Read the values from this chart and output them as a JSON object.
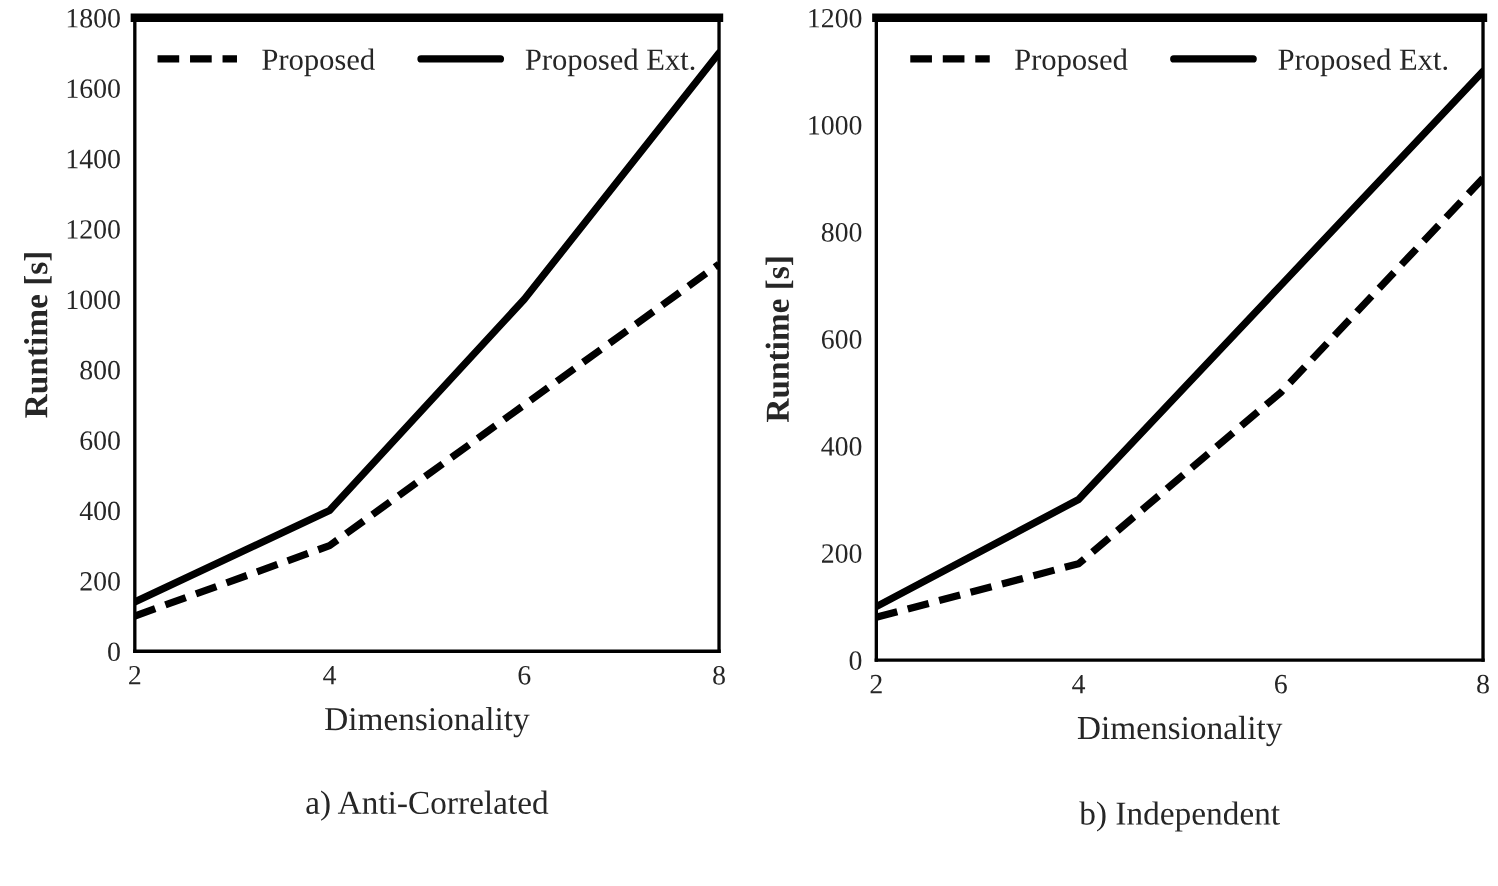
{
  "chart_data": [
    {
      "type": "line",
      "xlabel": "Dimensionality",
      "ylabel": "Runtime [s]",
      "x": [
        2,
        4,
        6,
        8
      ],
      "xlim": [
        2,
        8
      ],
      "xticks": [
        2,
        4,
        6,
        8
      ],
      "ylim": [
        0,
        1800
      ],
      "yticks": [
        0,
        200,
        400,
        600,
        800,
        1000,
        1200,
        1400,
        1600,
        1800
      ],
      "grid": false,
      "legend": "top",
      "marker": "none",
      "annotations": [
        "a) Anti-Correlated"
      ],
      "series": [
        {
          "name": "Proposed",
          "color": "#000000",
          "line_style": "dashed",
          "values": [
            100,
            300,
            700,
            1100
          ]
        },
        {
          "name": "Proposed Ext.",
          "color": "#000000",
          "line_style": "solid",
          "values": [
            140,
            400,
            1000,
            1700
          ]
        }
      ]
    },
    {
      "type": "line",
      "xlabel": "Dimensionality",
      "ylabel": "Runtime [s]",
      "x": [
        2,
        4,
        6,
        8
      ],
      "xlim": [
        2,
        8
      ],
      "xticks": [
        2,
        4,
        6,
        8
      ],
      "ylim": [
        0,
        1200
      ],
      "yticks": [
        0,
        200,
        400,
        600,
        800,
        1000,
        1200
      ],
      "grid": false,
      "legend": "top",
      "marker": "none",
      "annotations": [
        "b) Independent"
      ],
      "series": [
        {
          "name": "Proposed",
          "color": "#000000",
          "line_style": "dashed",
          "values": [
            80,
            180,
            500,
            900
          ]
        },
        {
          "name": "Proposed Ext.",
          "color": "#000000",
          "line_style": "solid",
          "values": [
            100,
            300,
            700,
            1100
          ]
        }
      ]
    }
  ]
}
